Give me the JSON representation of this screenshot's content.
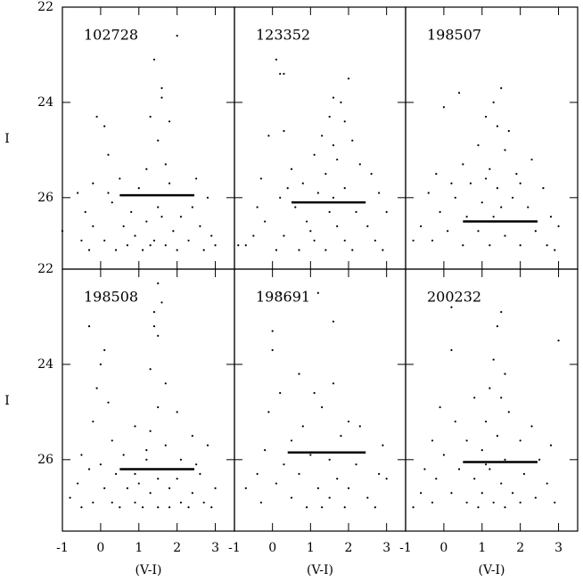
{
  "chart_data": [
    {
      "type": "scatter",
      "label": "102728",
      "y_label": "I",
      "x": [
        2.0,
        1.4,
        1.6,
        1.6,
        1.3,
        -0.1,
        1.8,
        0.1,
        1.5,
        0.2,
        1.2,
        1.7,
        -0.2,
        0.5,
        2.5,
        1.0,
        -0.6,
        0.3,
        2.8,
        -0.4,
        0.8,
        1.5,
        2.1,
        -0.2,
        0.6,
        1.2,
        1.9,
        2.6,
        -0.5,
        0.1,
        0.9,
        1.4,
        2.3,
        2.9,
        -0.3,
        0.4,
        1.1,
        1.7,
        2.0,
        2.7,
        -1.0,
        0.7,
        1.6,
        2.4,
        0.2,
        1.8,
        3.0,
        1.3
      ],
      "y": [
        22.6,
        23.1,
        23.7,
        23.9,
        24.3,
        24.3,
        24.4,
        24.5,
        24.8,
        25.1,
        25.4,
        25.3,
        25.7,
        25.6,
        25.6,
        25.8,
        25.9,
        26.1,
        26.0,
        26.3,
        26.3,
        26.2,
        26.4,
        26.6,
        26.6,
        26.5,
        26.7,
        26.6,
        26.9,
        26.9,
        26.8,
        26.9,
        26.9,
        26.8,
        27.1,
        27.1,
        27.1,
        27.0,
        27.1,
        27.1,
        26.7,
        27.0,
        26.4,
        26.2,
        25.9,
        25.7,
        27.0,
        27.0
      ],
      "line": {
        "x": [
          0.5,
          2.45
        ],
        "y": [
          25.95,
          25.95
        ]
      },
      "xlim": [
        -1,
        3.5
      ],
      "ylim": [
        27.5,
        22
      ],
      "xticks": [
        -1,
        0,
        1,
        2,
        3
      ],
      "yticks": [
        22,
        24,
        26
      ],
      "color": "#000000"
    },
    {
      "type": "scatter",
      "label": "123352",
      "x": [
        0.1,
        0.2,
        0.3,
        2.0,
        1.6,
        1.8,
        1.5,
        1.9,
        0.3,
        1.3,
        1.6,
        2.1,
        -0.1,
        1.1,
        1.7,
        2.3,
        0.5,
        1.4,
        2.6,
        -0.3,
        0.8,
        1.9,
        1.2,
        0.2,
        2.8,
        -0.4,
        0.6,
        1.5,
        2.2,
        3.0,
        -0.2,
        0.9,
        1.7,
        2.5,
        -0.5,
        0.3,
        1.1,
        1.9,
        2.7,
        -0.7,
        0.1,
        0.7,
        1.4,
        2.1,
        2.9,
        1.0,
        1.6,
        0.4,
        -0.9
      ],
      "y": [
        23.1,
        23.4,
        23.4,
        23.5,
        23.9,
        24.0,
        24.3,
        24.4,
        24.6,
        24.7,
        24.9,
        24.8,
        24.7,
        25.1,
        25.2,
        25.3,
        25.4,
        25.5,
        25.5,
        25.6,
        25.7,
        25.8,
        25.9,
        26.0,
        25.9,
        26.2,
        26.2,
        26.3,
        26.3,
        26.3,
        26.5,
        26.5,
        26.6,
        26.6,
        26.8,
        26.8,
        26.9,
        26.9,
        26.9,
        27.0,
        27.1,
        27.1,
        27.1,
        27.1,
        27.1,
        26.7,
        26.0,
        25.8,
        27.0
      ],
      "line": {
        "x": [
          0.5,
          2.45
        ],
        "y": [
          26.1,
          26.1
        ]
      },
      "xlim": [
        -1,
        3.5
      ],
      "ylim": [
        27.5,
        22
      ],
      "xticks": [
        -1,
        0,
        1,
        2,
        3
      ],
      "yticks": [
        22,
        24,
        26
      ],
      "color": "#000000"
    },
    {
      "type": "scatter",
      "label": "198507",
      "x": [
        1.5,
        0.0,
        0.4,
        1.1,
        1.3,
        1.4,
        1.7,
        0.9,
        1.6,
        2.3,
        0.5,
        1.2,
        -0.2,
        1.9,
        0.7,
        1.4,
        2.6,
        -0.4,
        0.3,
        1.0,
        1.8,
        2.2,
        -0.1,
        0.6,
        1.3,
        2.8,
        -0.6,
        0.1,
        0.9,
        1.6,
        2.4,
        3.0,
        -0.3,
        0.5,
        1.2,
        2.0,
        2.7,
        -0.8,
        1.5,
        0.2,
        2.0,
        1.1,
        2.9
      ],
      "y": [
        23.7,
        24.1,
        23.8,
        24.3,
        24.0,
        24.5,
        24.6,
        24.9,
        25.0,
        25.2,
        25.3,
        25.4,
        25.5,
        25.5,
        25.7,
        25.8,
        25.8,
        25.9,
        26.0,
        26.1,
        26.0,
        26.2,
        26.3,
        26.4,
        26.4,
        26.4,
        26.6,
        26.7,
        26.7,
        26.8,
        26.7,
        26.6,
        26.9,
        27.0,
        27.0,
        27.0,
        27.0,
        26.9,
        26.2,
        25.7,
        25.7,
        25.6,
        27.1
      ],
      "line": {
        "x": [
          0.5,
          2.45
        ],
        "y": [
          26.5,
          26.5
        ]
      },
      "xlim": [
        -1,
        3.5
      ],
      "ylim": [
        27.5,
        22
      ],
      "xticks": [
        -1,
        0,
        1,
        2,
        3
      ],
      "yticks": [
        22,
        24,
        26
      ],
      "color": "#000000"
    },
    {
      "type": "scatter",
      "label": "198508",
      "y_label": "I",
      "x_label": "(V-I)",
      "x": [
        1.5,
        1.6,
        1.4,
        1.4,
        1.5,
        -0.3,
        0.1,
        0.0,
        1.3,
        1.7,
        -0.1,
        0.2,
        1.5,
        2.0,
        -0.2,
        0.9,
        1.3,
        2.4,
        0.3,
        1.7,
        2.8,
        -0.5,
        0.6,
        1.2,
        2.1,
        -0.3,
        0.4,
        0.9,
        1.5,
        2.0,
        2.6,
        -0.6,
        0.1,
        0.7,
        1.3,
        1.8,
        2.4,
        3.0,
        -0.8,
        -0.2,
        0.3,
        0.9,
        1.5,
        2.1,
        2.7,
        -0.5,
        0.5,
        1.1,
        1.8,
        2.3,
        2.9,
        1.0,
        1.6,
        1.2,
        0.0,
        2.5
      ],
      "y": [
        22.3,
        22.7,
        22.9,
        23.2,
        23.4,
        23.2,
        23.7,
        24.0,
        24.1,
        24.4,
        24.5,
        24.8,
        24.9,
        25.0,
        25.2,
        25.3,
        25.4,
        25.5,
        25.6,
        25.7,
        25.7,
        25.9,
        25.9,
        26.0,
        26.0,
        26.2,
        26.3,
        26.3,
        26.4,
        26.4,
        26.3,
        26.5,
        26.6,
        26.6,
        26.7,
        26.6,
        26.7,
        26.6,
        26.8,
        26.9,
        26.9,
        26.9,
        27.0,
        26.9,
        26.9,
        27.0,
        27.0,
        27.0,
        27.0,
        27.0,
        27.0,
        26.5,
        26.2,
        25.8,
        26.1,
        26.1
      ],
      "line": {
        "x": [
          0.5,
          2.45
        ],
        "y": [
          26.2,
          26.2
        ]
      },
      "xlim": [
        -1,
        3.5
      ],
      "ylim": [
        27.5,
        22
      ],
      "xticks": [
        -1,
        0,
        1,
        2,
        3
      ],
      "yticks": [
        22,
        24,
        26
      ],
      "color": "#000000"
    },
    {
      "type": "scatter",
      "label": "198691",
      "x_label": "(V-I)",
      "x": [
        0.2,
        1.2,
        1.6,
        0.0,
        0.0,
        0.7,
        1.6,
        0.2,
        1.1,
        1.3,
        -0.1,
        2.0,
        0.8,
        2.3,
        1.8,
        0.5,
        2.9,
        -0.2,
        1.0,
        1.5,
        0.3,
        2.2,
        -0.4,
        0.7,
        1.7,
        2.8,
        0.1,
        1.2,
        2.0,
        -0.7,
        0.5,
        1.5,
        2.5,
        -0.3,
        0.9,
        1.9,
        2.7,
        3.0,
        1.3
      ],
      "y": [
        22.5,
        22.5,
        23.1,
        23.3,
        23.7,
        24.2,
        24.4,
        24.6,
        24.6,
        24.9,
        25.0,
        25.2,
        25.3,
        25.3,
        25.5,
        25.6,
        25.7,
        25.8,
        25.9,
        26.0,
        26.1,
        26.1,
        26.3,
        26.3,
        26.4,
        26.3,
        26.5,
        26.6,
        26.6,
        26.6,
        26.8,
        26.8,
        26.8,
        26.9,
        27.0,
        27.0,
        27.0,
        26.4,
        27.0
      ],
      "line": {
        "x": [
          0.4,
          2.45
        ],
        "y": [
          25.85,
          25.85
        ]
      },
      "xlim": [
        -1,
        3.5
      ],
      "ylim": [
        27.5,
        22
      ],
      "xticks": [
        -1,
        0,
        1,
        2,
        3
      ],
      "yticks": [
        22,
        24,
        26
      ],
      "color": "#000000"
    },
    {
      "type": "scatter",
      "label": "200232",
      "x_label": "(V-I)",
      "x": [
        0.2,
        1.5,
        1.4,
        3.0,
        0.2,
        1.3,
        1.6,
        1.2,
        1.5,
        0.8,
        -0.1,
        1.7,
        0.3,
        1.1,
        2.3,
        1.4,
        -0.3,
        0.6,
        2.0,
        2.8,
        1.0,
        0.0,
        1.6,
        2.5,
        -0.5,
        0.4,
        1.2,
        2.1,
        -0.2,
        0.8,
        1.5,
        2.7,
        -0.6,
        0.2,
        1.0,
        1.8,
        2.4,
        -0.3,
        0.6,
        1.3,
        2.0,
        2.9,
        -0.8,
        0.9,
        1.6,
        1.1
      ],
      "y": [
        22.8,
        22.9,
        23.2,
        23.5,
        23.7,
        23.9,
        24.2,
        24.5,
        24.7,
        24.7,
        24.9,
        25.0,
        25.2,
        25.2,
        25.3,
        25.5,
        25.6,
        25.6,
        25.6,
        25.7,
        25.8,
        25.9,
        26.0,
        26.0,
        26.2,
        26.2,
        26.2,
        26.3,
        26.4,
        26.4,
        26.5,
        26.5,
        26.7,
        26.7,
        26.7,
        26.7,
        26.8,
        26.9,
        26.9,
        26.9,
        26.9,
        26.9,
        27.0,
        27.0,
        27.0,
        26.1
      ],
      "line": {
        "x": [
          0.5,
          2.45
        ],
        "y": [
          26.05,
          26.05
        ]
      },
      "xlim": [
        -1,
        3.5
      ],
      "ylim": [
        27.5,
        22
      ],
      "xticks": [
        -1,
        0,
        1,
        2,
        3
      ],
      "yticks": [
        22,
        24,
        26
      ],
      "color": "#000000"
    }
  ]
}
